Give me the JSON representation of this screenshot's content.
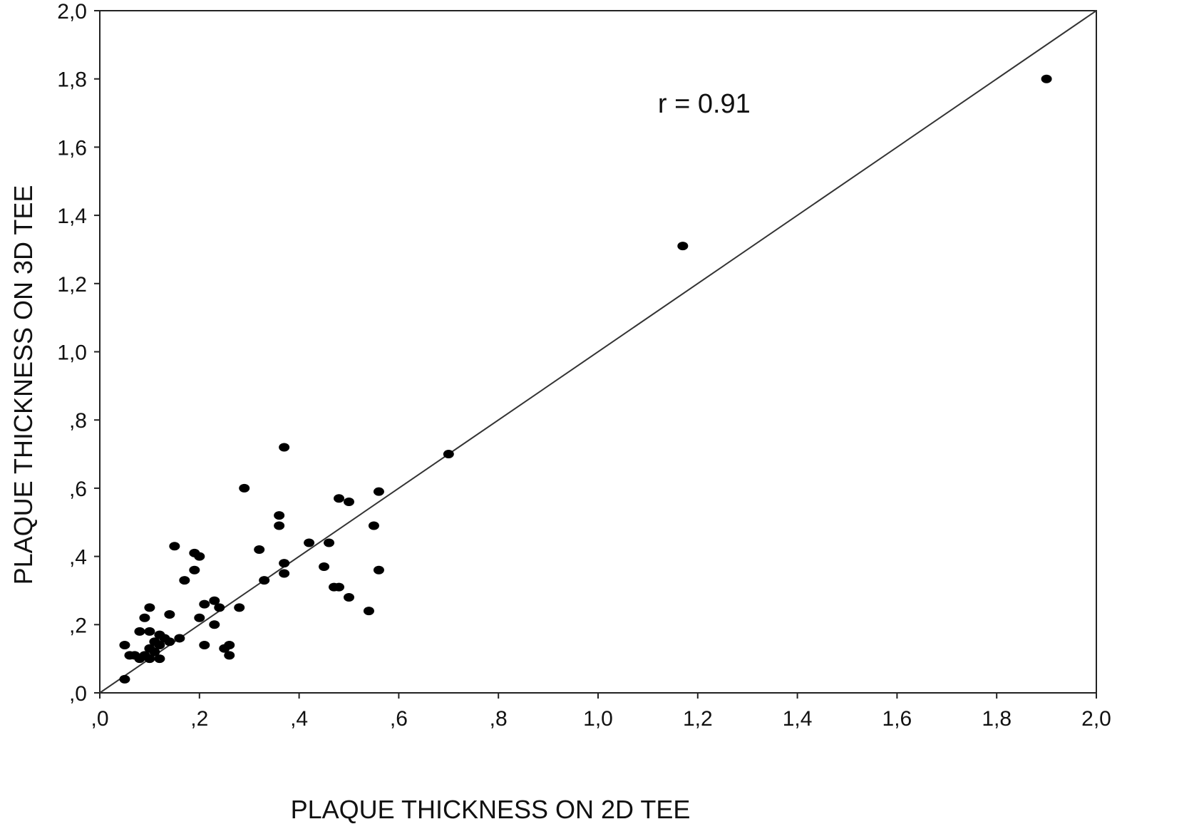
{
  "chart_data": {
    "type": "scatter",
    "title": "",
    "xlabel": "PLAQUE THICKNESS ON 2D TEE",
    "ylabel": "PLAQUE THICKNESS ON 3D TEE",
    "xlim": [
      0,
      2.0
    ],
    "ylim": [
      0,
      2.0
    ],
    "x_ticks": [
      0,
      0.2,
      0.4,
      0.6,
      0.8,
      1.0,
      1.2,
      1.4,
      1.6,
      1.8,
      2.0
    ],
    "x_tick_labels": [
      ",0",
      ",2",
      ",4",
      ",6",
      ",8",
      "1,0",
      "1,2",
      "1,4",
      "1,6",
      "1,8",
      "2,0"
    ],
    "y_ticks": [
      0,
      0.2,
      0.4,
      0.6,
      0.8,
      1.0,
      1.2,
      1.4,
      1.6,
      1.8,
      2.0
    ],
    "y_tick_labels": [
      ",0",
      ",2",
      ",4",
      ",6",
      ",8",
      "1,0",
      "1,2",
      "1,4",
      "1,6",
      "1,8",
      "2,0"
    ],
    "grid": false,
    "annotation": "r = 0.91",
    "reference_line": {
      "x": [
        0,
        2.0
      ],
      "y": [
        0,
        2.0
      ]
    },
    "points": [
      {
        "x": 0.05,
        "y": 0.04
      },
      {
        "x": 0.05,
        "y": 0.14
      },
      {
        "x": 0.06,
        "y": 0.11
      },
      {
        "x": 0.07,
        "y": 0.11
      },
      {
        "x": 0.08,
        "y": 0.18
      },
      {
        "x": 0.08,
        "y": 0.1
      },
      {
        "x": 0.09,
        "y": 0.22
      },
      {
        "x": 0.09,
        "y": 0.11
      },
      {
        "x": 0.1,
        "y": 0.25
      },
      {
        "x": 0.1,
        "y": 0.18
      },
      {
        "x": 0.1,
        "y": 0.13
      },
      {
        "x": 0.1,
        "y": 0.1
      },
      {
        "x": 0.11,
        "y": 0.15
      },
      {
        "x": 0.11,
        "y": 0.12
      },
      {
        "x": 0.12,
        "y": 0.17
      },
      {
        "x": 0.12,
        "y": 0.14
      },
      {
        "x": 0.12,
        "y": 0.1
      },
      {
        "x": 0.13,
        "y": 0.16
      },
      {
        "x": 0.14,
        "y": 0.23
      },
      {
        "x": 0.14,
        "y": 0.15
      },
      {
        "x": 0.15,
        "y": 0.43
      },
      {
        "x": 0.16,
        "y": 0.16
      },
      {
        "x": 0.17,
        "y": 0.33
      },
      {
        "x": 0.19,
        "y": 0.36
      },
      {
        "x": 0.19,
        "y": 0.41
      },
      {
        "x": 0.2,
        "y": 0.4
      },
      {
        "x": 0.2,
        "y": 0.22
      },
      {
        "x": 0.21,
        "y": 0.26
      },
      {
        "x": 0.21,
        "y": 0.14
      },
      {
        "x": 0.23,
        "y": 0.27
      },
      {
        "x": 0.23,
        "y": 0.2
      },
      {
        "x": 0.24,
        "y": 0.25
      },
      {
        "x": 0.25,
        "y": 0.13
      },
      {
        "x": 0.26,
        "y": 0.14
      },
      {
        "x": 0.26,
        "y": 0.11
      },
      {
        "x": 0.28,
        "y": 0.25
      },
      {
        "x": 0.29,
        "y": 0.6
      },
      {
        "x": 0.32,
        "y": 0.42
      },
      {
        "x": 0.33,
        "y": 0.33
      },
      {
        "x": 0.36,
        "y": 0.52
      },
      {
        "x": 0.36,
        "y": 0.49
      },
      {
        "x": 0.37,
        "y": 0.72
      },
      {
        "x": 0.37,
        "y": 0.38
      },
      {
        "x": 0.37,
        "y": 0.35
      },
      {
        "x": 0.42,
        "y": 0.44
      },
      {
        "x": 0.45,
        "y": 0.37
      },
      {
        "x": 0.46,
        "y": 0.44
      },
      {
        "x": 0.47,
        "y": 0.31
      },
      {
        "x": 0.48,
        "y": 0.57
      },
      {
        "x": 0.48,
        "y": 0.31
      },
      {
        "x": 0.5,
        "y": 0.56
      },
      {
        "x": 0.5,
        "y": 0.28
      },
      {
        "x": 0.54,
        "y": 0.24
      },
      {
        "x": 0.55,
        "y": 0.49
      },
      {
        "x": 0.56,
        "y": 0.59
      },
      {
        "x": 0.56,
        "y": 0.36
      },
      {
        "x": 0.7,
        "y": 0.7
      },
      {
        "x": 1.17,
        "y": 1.31
      },
      {
        "x": 1.9,
        "y": 1.8
      }
    ]
  }
}
